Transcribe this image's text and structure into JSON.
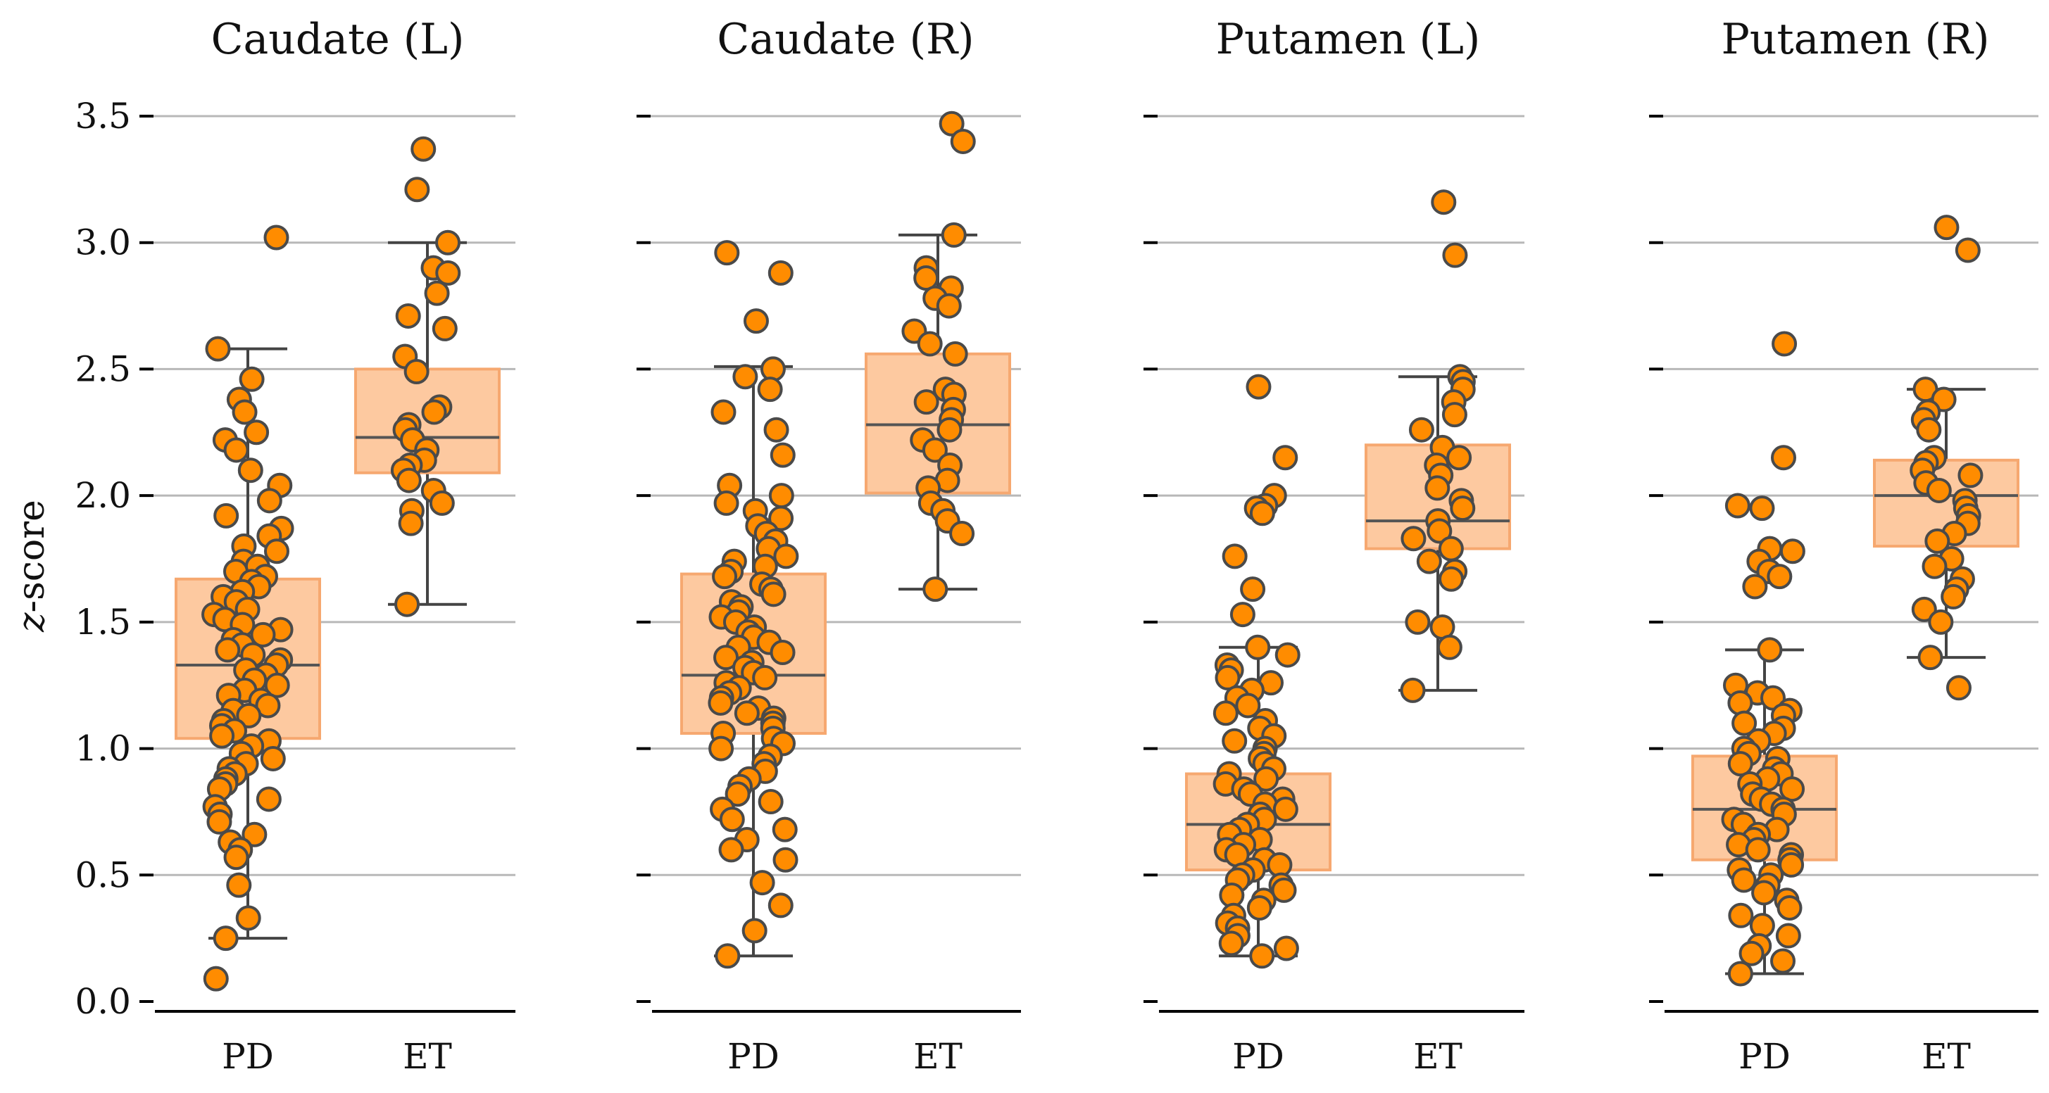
{
  "y_axis_title_italic": "z",
  "y_axis_title_rest": "-score",
  "chart_data": [
    {
      "type": "box-strip",
      "title": "Caudate (L)",
      "categories": [
        "PD",
        "ET"
      ],
      "ylabel": "z-score",
      "ylim": [
        0.0,
        3.5
      ],
      "yticks": [
        "0.0",
        "0.5",
        "1.0",
        "1.5",
        "2.0",
        "2.5",
        "3.0",
        "3.5"
      ],
      "grid": "horizontal",
      "boxes": [
        {
          "category": "PD",
          "q1": 1.04,
          "median": 1.33,
          "q3": 1.67,
          "whisker_low": 0.25,
          "whisker_high": 2.58
        },
        {
          "category": "ET",
          "q1": 2.09,
          "median": 2.23,
          "q3": 2.5,
          "whisker_low": 1.57,
          "whisker_high": 3.0
        }
      ],
      "points": {
        "PD": [
          3.02,
          2.58,
          2.46,
          2.38,
          2.33,
          2.25,
          2.22,
          2.18,
          2.1,
          2.04,
          1.98,
          1.92,
          1.87,
          1.84,
          1.8,
          1.78,
          1.74,
          1.72,
          1.7,
          1.68,
          1.66,
          1.64,
          1.62,
          1.6,
          1.58,
          1.55,
          1.53,
          1.51,
          1.49,
          1.47,
          1.45,
          1.43,
          1.41,
          1.39,
          1.37,
          1.35,
          1.33,
          1.31,
          1.29,
          1.27,
          1.25,
          1.23,
          1.21,
          1.19,
          1.17,
          1.15,
          1.13,
          1.11,
          1.09,
          1.07,
          1.05,
          1.03,
          1.01,
          0.98,
          0.96,
          0.94,
          0.92,
          0.9,
          0.88,
          0.86,
          0.84,
          0.8,
          0.77,
          0.74,
          0.71,
          0.66,
          0.63,
          0.6,
          0.57,
          0.46,
          0.33,
          0.25,
          0.09
        ],
        "ET": [
          3.37,
          3.21,
          3.0,
          2.9,
          2.88,
          2.8,
          2.71,
          2.66,
          2.55,
          2.49,
          2.35,
          2.33,
          2.28,
          2.26,
          2.22,
          2.18,
          2.14,
          2.12,
          2.1,
          2.06,
          2.02,
          1.97,
          1.94,
          1.89,
          1.57
        ]
      }
    },
    {
      "type": "box-strip",
      "title": "Caudate (R)",
      "categories": [
        "PD",
        "ET"
      ],
      "ylim": [
        0.0,
        3.5
      ],
      "grid": "horizontal",
      "boxes": [
        {
          "category": "PD",
          "q1": 1.06,
          "median": 1.29,
          "q3": 1.69,
          "whisker_low": 0.18,
          "whisker_high": 2.51
        },
        {
          "category": "ET",
          "q1": 2.01,
          "median": 2.28,
          "q3": 2.56,
          "whisker_low": 1.63,
          "whisker_high": 3.03
        }
      ],
      "points": {
        "PD": [
          2.96,
          2.88,
          2.69,
          2.5,
          2.47,
          2.42,
          2.33,
          2.26,
          2.16,
          2.04,
          2.0,
          1.97,
          1.94,
          1.91,
          1.88,
          1.85,
          1.82,
          1.79,
          1.76,
          1.74,
          1.72,
          1.7,
          1.68,
          1.65,
          1.63,
          1.61,
          1.58,
          1.56,
          1.54,
          1.52,
          1.5,
          1.48,
          1.46,
          1.44,
          1.42,
          1.4,
          1.38,
          1.36,
          1.34,
          1.32,
          1.3,
          1.28,
          1.26,
          1.24,
          1.22,
          1.2,
          1.18,
          1.16,
          1.14,
          1.12,
          1.1,
          1.08,
          1.06,
          1.04,
          1.02,
          1.0,
          0.97,
          0.94,
          0.91,
          0.88,
          0.85,
          0.82,
          0.79,
          0.76,
          0.72,
          0.68,
          0.64,
          0.6,
          0.56,
          0.47,
          0.38,
          0.28,
          0.18
        ],
        "ET": [
          3.47,
          3.4,
          3.03,
          2.9,
          2.86,
          2.82,
          2.78,
          2.75,
          2.65,
          2.6,
          2.56,
          2.42,
          2.4,
          2.37,
          2.34,
          2.3,
          2.26,
          2.22,
          2.18,
          2.12,
          2.06,
          2.03,
          1.97,
          1.94,
          1.9,
          1.85,
          1.63
        ]
      }
    },
    {
      "type": "box-strip",
      "title": "Putamen (L)",
      "categories": [
        "PD",
        "ET"
      ],
      "ylim": [
        0.0,
        3.5
      ],
      "grid": "horizontal",
      "boxes": [
        {
          "category": "PD",
          "q1": 0.52,
          "median": 0.7,
          "q3": 0.9,
          "whisker_low": 0.18,
          "whisker_high": 1.4
        },
        {
          "category": "ET",
          "q1": 1.79,
          "median": 1.9,
          "q3": 2.2,
          "whisker_low": 1.23,
          "whisker_high": 2.47
        }
      ],
      "points": {
        "PD": [
          2.43,
          2.15,
          2.0,
          1.96,
          1.95,
          1.93,
          1.76,
          1.63,
          1.53,
          1.4,
          1.37,
          1.33,
          1.31,
          1.28,
          1.26,
          1.23,
          1.2,
          1.17,
          1.14,
          1.11,
          1.08,
          1.05,
          1.03,
          1.0,
          0.98,
          0.96,
          0.94,
          0.92,
          0.9,
          0.88,
          0.86,
          0.84,
          0.82,
          0.8,
          0.78,
          0.76,
          0.74,
          0.72,
          0.7,
          0.68,
          0.66,
          0.64,
          0.62,
          0.6,
          0.58,
          0.56,
          0.54,
          0.52,
          0.5,
          0.48,
          0.46,
          0.44,
          0.42,
          0.4,
          0.37,
          0.34,
          0.31,
          0.29,
          0.26,
          0.23,
          0.21,
          0.18
        ],
        "ET": [
          3.16,
          2.95,
          2.47,
          2.45,
          2.42,
          2.37,
          2.32,
          2.26,
          2.19,
          2.15,
          2.12,
          2.08,
          2.03,
          1.98,
          1.95,
          1.9,
          1.86,
          1.83,
          1.79,
          1.74,
          1.7,
          1.67,
          1.5,
          1.48,
          1.4,
          1.23
        ]
      }
    },
    {
      "type": "box-strip",
      "title": "Putamen (R)",
      "categories": [
        "PD",
        "ET"
      ],
      "ylim": [
        0.0,
        3.5
      ],
      "grid": "horizontal",
      "boxes": [
        {
          "category": "PD",
          "q1": 0.56,
          "median": 0.76,
          "q3": 0.97,
          "whisker_low": 0.11,
          "whisker_high": 1.39
        },
        {
          "category": "ET",
          "q1": 1.8,
          "median": 2.0,
          "q3": 2.14,
          "whisker_low": 1.36,
          "whisker_high": 2.42
        }
      ],
      "points": {
        "PD": [
          2.6,
          2.15,
          1.96,
          1.95,
          1.79,
          1.78,
          1.74,
          1.7,
          1.68,
          1.64,
          1.39,
          1.25,
          1.22,
          1.2,
          1.18,
          1.15,
          1.13,
          1.1,
          1.08,
          1.06,
          1.03,
          1.0,
          0.98,
          0.96,
          0.94,
          0.92,
          0.9,
          0.88,
          0.86,
          0.84,
          0.82,
          0.8,
          0.78,
          0.76,
          0.74,
          0.72,
          0.7,
          0.68,
          0.66,
          0.64,
          0.62,
          0.6,
          0.58,
          0.56,
          0.54,
          0.52,
          0.5,
          0.48,
          0.46,
          0.43,
          0.4,
          0.37,
          0.34,
          0.3,
          0.26,
          0.22,
          0.19,
          0.16,
          0.11
        ],
        "ET": [
          3.06,
          2.97,
          2.42,
          2.38,
          2.33,
          2.3,
          2.26,
          2.15,
          2.13,
          2.1,
          2.08,
          2.05,
          2.02,
          1.98,
          1.95,
          1.92,
          1.89,
          1.85,
          1.82,
          1.75,
          1.72,
          1.67,
          1.63,
          1.6,
          1.55,
          1.5,
          1.36,
          1.24
        ]
      }
    }
  ],
  "colors": {
    "box_fill": "#fdc9a0",
    "box_edge": "#f6a870",
    "whisker": "#444444",
    "median": "#555555",
    "point_fill": "#ff8c00",
    "point_edge": "#4a4a4a",
    "grid": "#b8b8b8",
    "axis": "#000000"
  }
}
